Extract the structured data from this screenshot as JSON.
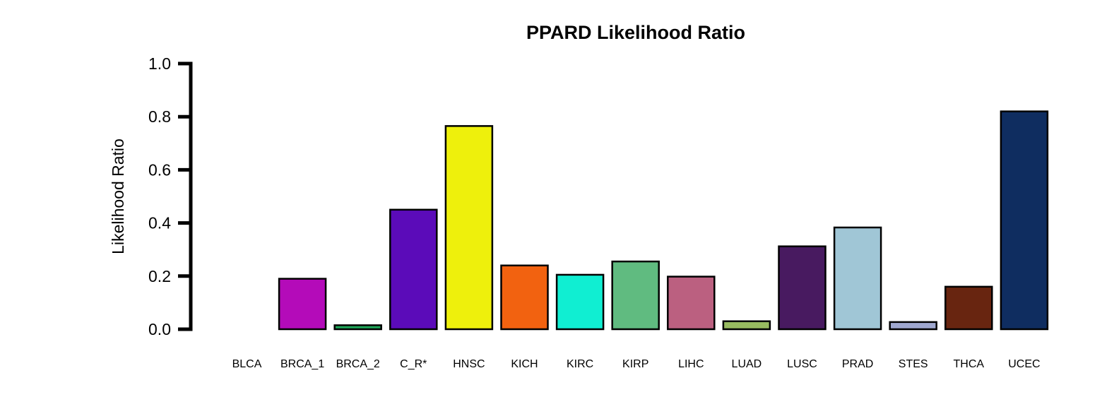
{
  "chart_data": {
    "type": "bar",
    "title": "PPARD Likelihood Ratio",
    "ylabel": "Likelihood Ratio",
    "xlabel": "",
    "ylim": [
      0,
      1.0
    ],
    "yticks": [
      "0.0",
      "0.2",
      "0.4",
      "0.6",
      "0.8",
      "1.0"
    ],
    "categories": [
      "BLCA",
      "BRCA_1",
      "BRCA_2",
      "C_R*",
      "HNSC",
      "KICH",
      "KIRC",
      "KIRP",
      "LIHC",
      "LUAD",
      "LUSC",
      "PRAD",
      "STES",
      "THCA",
      "UCEC"
    ],
    "values": [
      0.0,
      0.19,
      0.015,
      0.45,
      0.765,
      0.24,
      0.205,
      0.255,
      0.198,
      0.03,
      0.312,
      0.383,
      0.027,
      0.16,
      0.82
    ],
    "colors": [
      "#000000",
      "#b40bb9",
      "#1fa85a",
      "#5b0bb9",
      "#eef00c",
      "#f26210",
      "#10eed2",
      "#60bb80",
      "#bb6080",
      "#98bb60",
      "#481a60",
      "#a0c6d6",
      "#a0a8d0",
      "#682510",
      "#0f2d60"
    ],
    "grid": false,
    "legend": "none"
  }
}
